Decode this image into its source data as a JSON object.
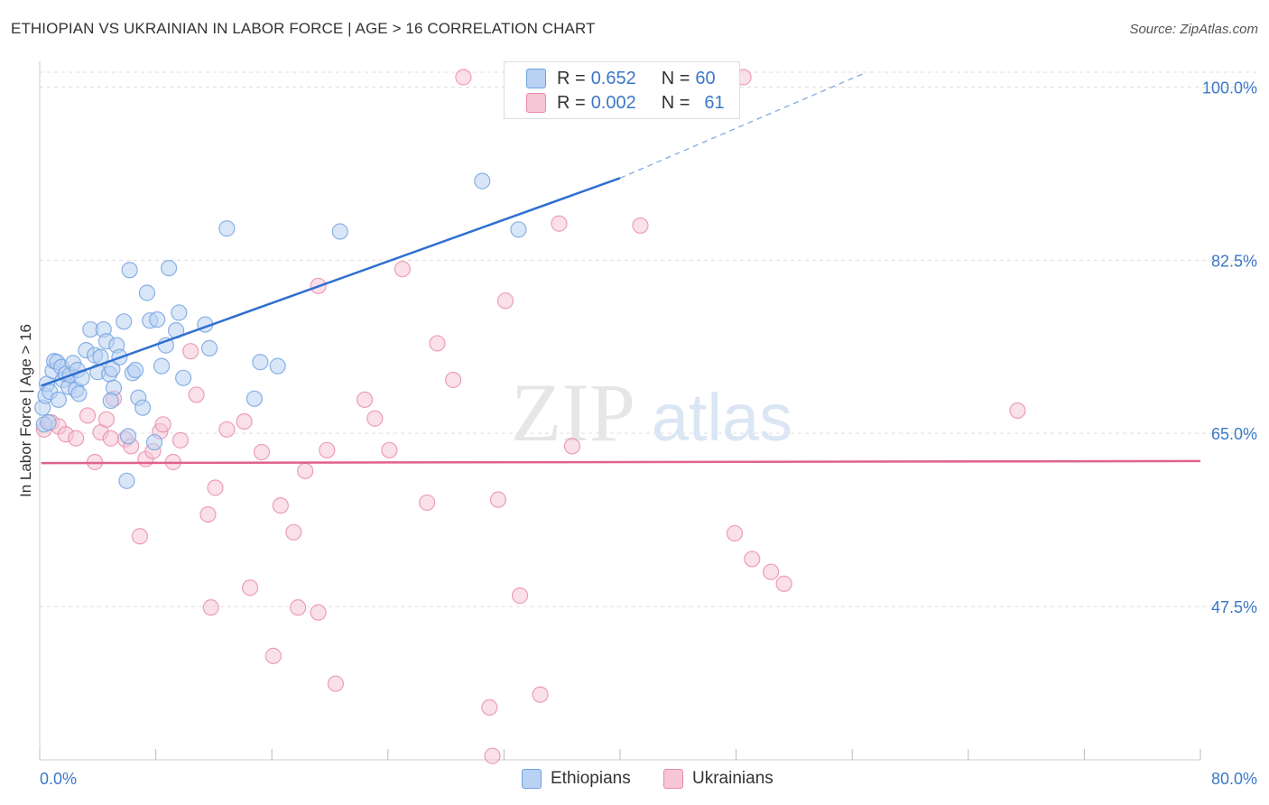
{
  "header": {
    "title": "ETHIOPIAN VS UKRAINIAN IN LABOR FORCE | AGE > 16 CORRELATION CHART",
    "source": "Source: ZipAtlas.com"
  },
  "legend": {
    "ethiopians": {
      "r_label": "R = ",
      "r_value": "0.652",
      "n_label": "N = ",
      "n_value": "60"
    },
    "ukrainians": {
      "r_label": "R = ",
      "r_value": "0.002",
      "n_label": "N = ",
      "n_value": "61"
    }
  },
  "colors": {
    "blue": "#6fa0e0",
    "blue_fill": "#b9d1f2",
    "blue_line": "#2f6fd0",
    "pink": "#e889a8",
    "pink_fill": "#f6c6d6",
    "pink_line": "#e0628c",
    "axis_text": "#3b78c9",
    "grid": "#dddddd"
  },
  "chart_data": {
    "type": "scatter",
    "title": "ETHIOPIAN VS UKRAINIAN IN LABOR FORCE | AGE > 16 CORRELATION CHART",
    "xlabel": "",
    "ylabel": "In Labor Force | Age > 16",
    "xlim": [
      0,
      80
    ],
    "ylim": [
      32,
      101.5
    ],
    "x_tick_labels": [
      "0.0%",
      "80.0%"
    ],
    "y_ticks": [
      47.5,
      65.0,
      82.5,
      100.0
    ],
    "y_tick_labels": [
      "47.5%",
      "65.0%",
      "82.5%",
      "100.0%"
    ],
    "watermark": {
      "zip": "ZIP",
      "atlas": "atlas"
    },
    "series": [
      {
        "name": "Ethiopians",
        "color": "#6fa0e0",
        "trend": {
          "x0": 0.1,
          "y0": 69.8,
          "x1": 40.0,
          "y1": 90.8,
          "dash_to_x": 57.0,
          "dash_to_y": 101.5
        },
        "points": [
          [
            0.2,
            67.6
          ],
          [
            0.3,
            65.9
          ],
          [
            0.4,
            68.8
          ],
          [
            0.5,
            70.0
          ],
          [
            0.7,
            69.2
          ],
          [
            0.9,
            71.3
          ],
          [
            1.0,
            72.3
          ],
          [
            1.2,
            72.2
          ],
          [
            1.5,
            71.7
          ],
          [
            1.6,
            70.4
          ],
          [
            1.8,
            71.0
          ],
          [
            2.0,
            69.7
          ],
          [
            2.1,
            70.9
          ],
          [
            2.3,
            72.1
          ],
          [
            2.5,
            69.4
          ],
          [
            2.6,
            71.4
          ],
          [
            2.9,
            70.6
          ],
          [
            3.2,
            73.4
          ],
          [
            3.5,
            75.5
          ],
          [
            3.8,
            72.9
          ],
          [
            4.0,
            71.2
          ],
          [
            4.2,
            72.7
          ],
          [
            4.4,
            75.5
          ],
          [
            4.6,
            74.3
          ],
          [
            4.8,
            71.0
          ],
          [
            5.0,
            71.5
          ],
          [
            5.1,
            69.6
          ],
          [
            5.3,
            73.9
          ],
          [
            5.5,
            72.7
          ],
          [
            5.8,
            76.3
          ],
          [
            6.1,
            64.7
          ],
          [
            6.2,
            81.5
          ],
          [
            6.4,
            71.1
          ],
          [
            6.6,
            71.4
          ],
          [
            6.8,
            68.6
          ],
          [
            7.1,
            67.6
          ],
          [
            7.4,
            79.2
          ],
          [
            7.6,
            76.4
          ],
          [
            7.9,
            64.1
          ],
          [
            8.1,
            76.5
          ],
          [
            8.4,
            71.8
          ],
          [
            8.7,
            73.9
          ],
          [
            8.9,
            81.7
          ],
          [
            9.4,
            75.4
          ],
          [
            9.6,
            77.2
          ],
          [
            9.9,
            70.6
          ],
          [
            11.4,
            76.0
          ],
          [
            11.7,
            73.6
          ],
          [
            12.9,
            85.7
          ],
          [
            14.8,
            68.5
          ],
          [
            15.2,
            72.2
          ],
          [
            16.4,
            71.8
          ],
          [
            20.7,
            85.4
          ],
          [
            30.5,
            90.5
          ],
          [
            33.0,
            85.6
          ],
          [
            6.0,
            60.2
          ],
          [
            0.6,
            66.1
          ],
          [
            1.3,
            68.4
          ],
          [
            2.7,
            69.0
          ],
          [
            4.9,
            68.3
          ]
        ]
      },
      {
        "name": "Ukrainians",
        "color": "#e889a8",
        "trend": {
          "x0": 0.1,
          "y0": 62.0,
          "x1": 80.0,
          "y1": 62.2
        },
        "points": [
          [
            0.3,
            65.4
          ],
          [
            0.8,
            66.1
          ],
          [
            1.3,
            65.7
          ],
          [
            1.8,
            64.9
          ],
          [
            2.5,
            64.5
          ],
          [
            3.3,
            66.8
          ],
          [
            3.8,
            62.1
          ],
          [
            4.2,
            65.1
          ],
          [
            4.6,
            66.4
          ],
          [
            5.1,
            68.5
          ],
          [
            5.9,
            64.4
          ],
          [
            6.3,
            63.7
          ],
          [
            6.9,
            54.6
          ],
          [
            7.3,
            62.4
          ],
          [
            7.8,
            63.2
          ],
          [
            8.3,
            65.2
          ],
          [
            8.5,
            65.9
          ],
          [
            9.2,
            62.1
          ],
          [
            9.7,
            64.3
          ],
          [
            10.4,
            73.3
          ],
          [
            10.8,
            68.9
          ],
          [
            11.6,
            56.8
          ],
          [
            12.1,
            59.5
          ],
          [
            12.9,
            65.4
          ],
          [
            14.1,
            66.2
          ],
          [
            14.5,
            49.4
          ],
          [
            15.3,
            63.1
          ],
          [
            16.1,
            42.5
          ],
          [
            16.6,
            57.7
          ],
          [
            17.5,
            55.0
          ],
          [
            18.3,
            61.2
          ],
          [
            19.2,
            79.9
          ],
          [
            19.8,
            63.3
          ],
          [
            20.4,
            39.7
          ],
          [
            22.4,
            68.4
          ],
          [
            23.1,
            66.5
          ],
          [
            24.1,
            63.3
          ],
          [
            25.0,
            81.6
          ],
          [
            26.7,
            58.0
          ],
          [
            27.4,
            74.1
          ],
          [
            28.5,
            70.4
          ],
          [
            29.2,
            101.0
          ],
          [
            31.0,
            37.3
          ],
          [
            31.2,
            32.4
          ],
          [
            31.6,
            58.3
          ],
          [
            32.1,
            78.4
          ],
          [
            33.1,
            48.6
          ],
          [
            34.5,
            38.6
          ],
          [
            35.8,
            86.2
          ],
          [
            36.7,
            63.7
          ],
          [
            41.4,
            86.0
          ],
          [
            47.9,
            54.9
          ],
          [
            49.1,
            52.3
          ],
          [
            50.4,
            51.0
          ],
          [
            51.3,
            49.8
          ],
          [
            67.4,
            67.3
          ],
          [
            11.8,
            47.4
          ],
          [
            17.8,
            47.4
          ],
          [
            19.2,
            46.9
          ],
          [
            4.9,
            64.5
          ],
          [
            48.5,
            101.0
          ]
        ]
      }
    ],
    "legend_position": "top-center",
    "bottom_legend": [
      "Ethiopians",
      "Ukrainians"
    ],
    "grid": true
  }
}
